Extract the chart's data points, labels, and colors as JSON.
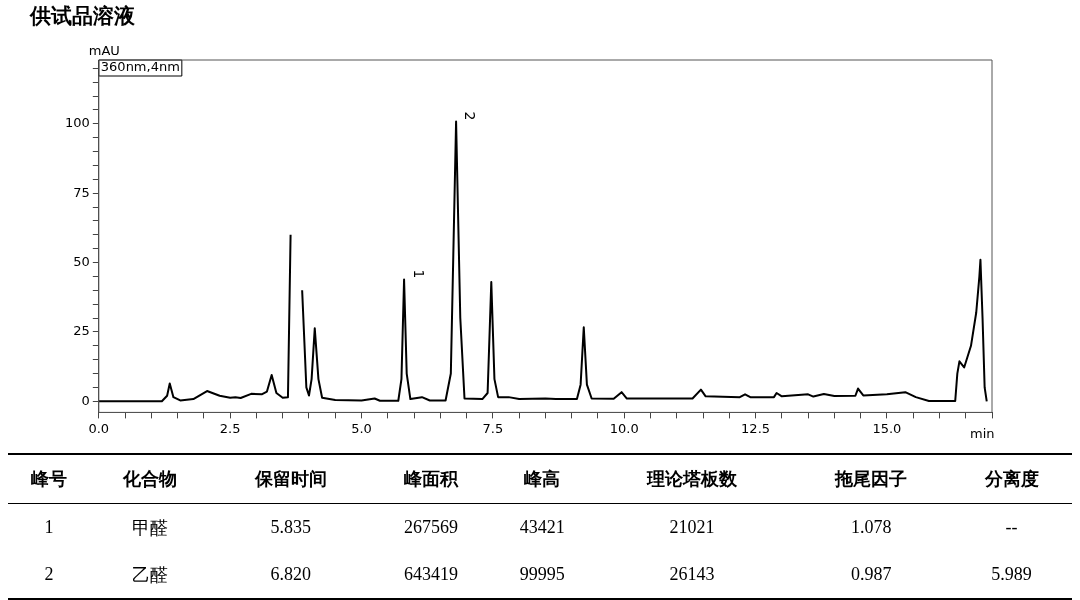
{
  "chart_data": [
    {
      "type": "line",
      "title": "供试品溶液",
      "xlabel": "min",
      "ylabel": "mAU",
      "x": [
        0,
        1.2,
        1.3,
        1.35,
        1.42,
        1.55,
        1.8,
        2.06,
        2.3,
        2.5,
        2.6,
        2.7,
        2.9,
        3.1,
        3.2,
        3.29,
        3.38,
        3.5,
        3.6,
        3.65,
        3.7,
        3.82,
        3.87,
        3.95,
        4.0,
        4.05,
        4.11,
        4.18,
        4.25,
        4.5,
        5.0,
        5.25,
        5.35,
        5.7,
        5.76,
        5.81,
        5.86,
        5.93,
        6.15,
        6.3,
        6.6,
        6.7,
        6.8,
        6.88,
        6.96,
        7.3,
        7.4,
        7.47,
        7.53,
        7.6,
        7.8,
        8.0,
        8.5,
        8.7,
        9.1,
        9.17,
        9.23,
        9.29,
        9.38,
        9.8,
        9.95,
        10.05,
        11.3,
        11.46,
        11.55,
        12.2,
        12.3,
        12.4,
        12.85,
        12.9,
        13.0,
        13.5,
        13.6,
        13.8,
        14.0,
        14.4,
        14.45,
        14.55,
        15.0,
        15.35,
        15.55,
        15.8,
        16.3,
        16.34,
        16.38,
        16.47,
        16.6,
        16.7,
        16.76,
        16.78,
        16.82,
        16.86,
        16.9
      ],
      "series": [
        {
          "color": "#000000",
          "values": [
            0,
            0,
            2,
            6.4,
            1.5,
            0.3,
            0.8,
            3.7,
            2,
            1.3,
            1.5,
            1.2,
            2.7,
            2.5,
            3.5,
            9.5,
            3,
            1.3,
            1.5,
            60,
            null,
            null,
            40,
            5,
            2.1,
            8,
            26.3,
            8,
            1.3,
            0.5,
            0.3,
            1,
            0.2,
            0.2,
            8,
            43.9,
            10,
            0.8,
            1.5,
            0.3,
            0.3,
            10,
            100.8,
            30,
            1,
            0.8,
            3,
            43,
            8,
            1.5,
            1.5,
            0.8,
            1,
            0.8,
            0.8,
            6,
            26.7,
            6,
            1,
            0.9,
            3.3,
            1,
            1,
            4.2,
            1.8,
            1.5,
            2.5,
            1.5,
            1.5,
            3,
            1.8,
            2.5,
            1.7,
            2.6,
            1.9,
            2,
            4.6,
            2.1,
            2.5,
            3.3,
            1.5,
            0.1,
            0.1,
            10,
            14.4,
            12.2,
            20,
            32,
            45,
            51,
            30,
            5,
            0
          ]
        }
      ],
      "xlim": [
        0,
        17
      ],
      "ylim": [
        -4,
        123
      ],
      "xticks": [
        {
          "value": 0,
          "label": "0.0"
        },
        {
          "value": 0.5,
          "label": null
        },
        {
          "value": 1,
          "label": null
        },
        {
          "value": 1.5,
          "label": null
        },
        {
          "value": 2,
          "label": null
        },
        {
          "value": 2.5,
          "label": "2.5"
        },
        {
          "value": 3,
          "label": null
        },
        {
          "value": 3.5,
          "label": null
        },
        {
          "value": 4,
          "label": null
        },
        {
          "value": 4.5,
          "label": null
        },
        {
          "value": 5,
          "label": "5.0"
        },
        {
          "value": 5.5,
          "label": null
        },
        {
          "value": 6,
          "label": null
        },
        {
          "value": 6.5,
          "label": null
        },
        {
          "value": 7,
          "label": null
        },
        {
          "value": 7.5,
          "label": "7.5"
        },
        {
          "value": 8,
          "label": null
        },
        {
          "value": 8.5,
          "label": null
        },
        {
          "value": 9,
          "label": null
        },
        {
          "value": 9.5,
          "label": null
        },
        {
          "value": 10,
          "label": "10.0"
        },
        {
          "value": 10.5,
          "label": null
        },
        {
          "value": 11,
          "label": null
        },
        {
          "value": 11.5,
          "label": null
        },
        {
          "value": 12,
          "label": null
        },
        {
          "value": 12.5,
          "label": "12.5"
        },
        {
          "value": 13,
          "label": null
        },
        {
          "value": 13.5,
          "label": null
        },
        {
          "value": 14,
          "label": null
        },
        {
          "value": 14.5,
          "label": null
        },
        {
          "value": 15,
          "label": "15.0"
        },
        {
          "value": 15.5,
          "label": null
        },
        {
          "value": 16,
          "label": null
        },
        {
          "value": 16.5,
          "label": null
        },
        {
          "value": 17,
          "label": null
        }
      ],
      "yticks": [
        0,
        {
          "value": 5,
          "label": null
        },
        {
          "value": 10,
          "label": null
        },
        {
          "value": 15,
          "label": null
        },
        {
          "value": 20,
          "label": null
        },
        25,
        {
          "value": 30,
          "label": null
        },
        {
          "value": 35,
          "label": null
        },
        {
          "value": 40,
          "label": null
        },
        {
          "value": 45,
          "label": null
        },
        50,
        {
          "value": 55,
          "label": null
        },
        {
          "value": 60,
          "label": null
        },
        {
          "value": 65,
          "label": null
        },
        {
          "value": 70,
          "label": null
        },
        75,
        {
          "value": 80,
          "label": null
        },
        {
          "value": 85,
          "label": null
        },
        {
          "value": 90,
          "label": null
        },
        {
          "value": 95,
          "label": null
        },
        100,
        {
          "value": 105,
          "label": null
        },
        {
          "value": 110,
          "label": null
        },
        {
          "value": 115,
          "label": null
        },
        {
          "value": 120,
          "label": null
        }
      ],
      "grid": false,
      "legend": false,
      "marker": "none",
      "line_style": "solid",
      "annotations": [
        "360nm,4nm",
        {
          "text": "1",
          "x": 5.835,
          "y": 43.9
        },
        {
          "text": "2",
          "x": 6.82,
          "y": 100.8
        }
      ]
    },
    {
      "type": "other",
      "categories": [
        "峰号",
        "化合物",
        "保留时间",
        "峰面积",
        "峰高",
        "理论塔板数",
        "拖尾因子",
        "分离度"
      ],
      "annotations": [
        "1",
        "甲醛",
        "5.835",
        "267569",
        "43421",
        "21021",
        "1.078",
        "--",
        "2",
        "乙醛",
        "6.820",
        "643419",
        "99995",
        "26143",
        "0.987",
        "5.989"
      ]
    }
  ]
}
